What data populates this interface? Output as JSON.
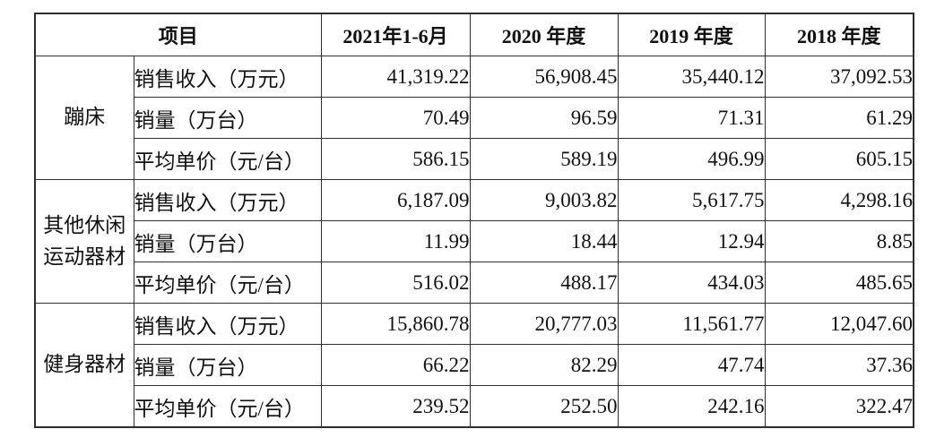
{
  "table": {
    "header": {
      "item_label": "项目",
      "periods": [
        "2021年1-6月",
        "2020 年度",
        "2019 年度",
        "2018 年度"
      ]
    },
    "groups": [
      {
        "category": "蹦床",
        "rows": [
          {
            "metric": "销售收入（万元）",
            "values": [
              "41,319.22",
              "56,908.45",
              "35,440.12",
              "37,092.53"
            ]
          },
          {
            "metric": "销量（万台）",
            "values": [
              "70.49",
              "96.59",
              "71.31",
              "61.29"
            ]
          },
          {
            "metric": "平均单价（元/台）",
            "values": [
              "586.15",
              "589.19",
              "496.99",
              "605.15"
            ]
          }
        ]
      },
      {
        "category": "其他休闲运动器材",
        "rows": [
          {
            "metric": "销售收入（万元）",
            "values": [
              "6,187.09",
              "9,003.82",
              "5,617.75",
              "4,298.16"
            ]
          },
          {
            "metric": "销量（万台）",
            "values": [
              "11.99",
              "18.44",
              "12.94",
              "8.85"
            ]
          },
          {
            "metric": "平均单价（元/台）",
            "values": [
              "516.02",
              "488.17",
              "434.03",
              "485.65"
            ]
          }
        ]
      },
      {
        "category": "健身器材",
        "rows": [
          {
            "metric": "销售收入（万元）",
            "values": [
              "15,860.78",
              "20,777.03",
              "11,561.77",
              "12,047.60"
            ]
          },
          {
            "metric": "销量（万台）",
            "values": [
              "66.22",
              "82.29",
              "47.74",
              "37.36"
            ]
          },
          {
            "metric": "平均单价（元/台）",
            "values": [
              "239.52",
              "252.50",
              "242.16",
              "322.47"
            ]
          }
        ]
      }
    ]
  }
}
